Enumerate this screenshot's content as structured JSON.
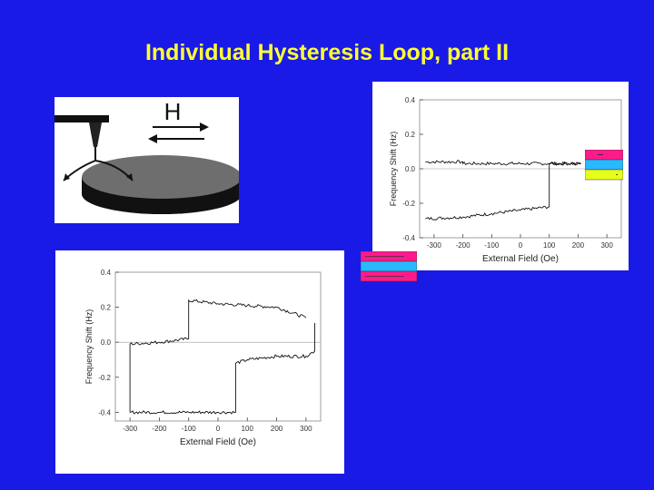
{
  "title": "Individual Hysteresis Loop, part II",
  "illustration": {
    "field_label": "H"
  },
  "colors": {
    "background": "#1a1ae6",
    "title": "#ffff33",
    "magenta": "#ff1a8c",
    "cyan": "#2ab8ff",
    "yellow": "#e6ff1a"
  },
  "chart_data": [
    {
      "type": "line",
      "title": "",
      "xlabel": "External Field (Oe)",
      "ylabel": "Frequency Shift (Hz)",
      "xlim": [
        -350,
        350
      ],
      "ylim": [
        -0.4,
        0.4
      ],
      "xticks": [
        "-300",
        "-200",
        "-100",
        "0",
        "100",
        "200",
        "300"
      ],
      "yticks": [
        "0.4",
        "0.2",
        "0.0",
        "-0.2",
        "-0.4"
      ],
      "series": [
        {
          "x": [
            -330,
            -200,
            -200,
            -100,
            0,
            100,
            210
          ],
          "y": [
            0.04,
            0.04,
            0.03,
            0.03,
            0.03,
            0.03,
            0.03
          ]
        },
        {
          "x": [
            -330,
            -200,
            -100,
            0,
            100,
            100,
            210
          ],
          "y": [
            -0.29,
            -0.28,
            -0.26,
            -0.24,
            -0.22,
            0.03,
            0.03
          ]
        }
      ]
    },
    {
      "type": "line",
      "title": "",
      "xlabel": "External Field (Oe)",
      "ylabel": "Frequency Shift (Hz)",
      "xlim": [
        -350,
        350
      ],
      "ylim": [
        -0.45,
        0.4
      ],
      "xticks": [
        "-300",
        "-200",
        "-100",
        "0",
        "100",
        "200",
        "300"
      ],
      "yticks": [
        "0.4",
        "0.2",
        "0.0",
        "-0.2",
        "-0.4"
      ],
      "series": [
        {
          "x": [
            -300,
            -300,
            -200,
            -100,
            -100,
            0,
            100,
            200,
            300
          ],
          "y": [
            -0.4,
            -0.01,
            0.0,
            0.02,
            0.24,
            0.22,
            0.21,
            0.2,
            0.14
          ]
        },
        {
          "x": [
            -300,
            -200,
            -100,
            0,
            60,
            60,
            100,
            200,
            300,
            330,
            330
          ],
          "y": [
            -0.4,
            -0.4,
            -0.4,
            -0.4,
            -0.4,
            -0.12,
            -0.1,
            -0.08,
            -0.08,
            -0.05,
            0.11
          ]
        }
      ]
    }
  ]
}
